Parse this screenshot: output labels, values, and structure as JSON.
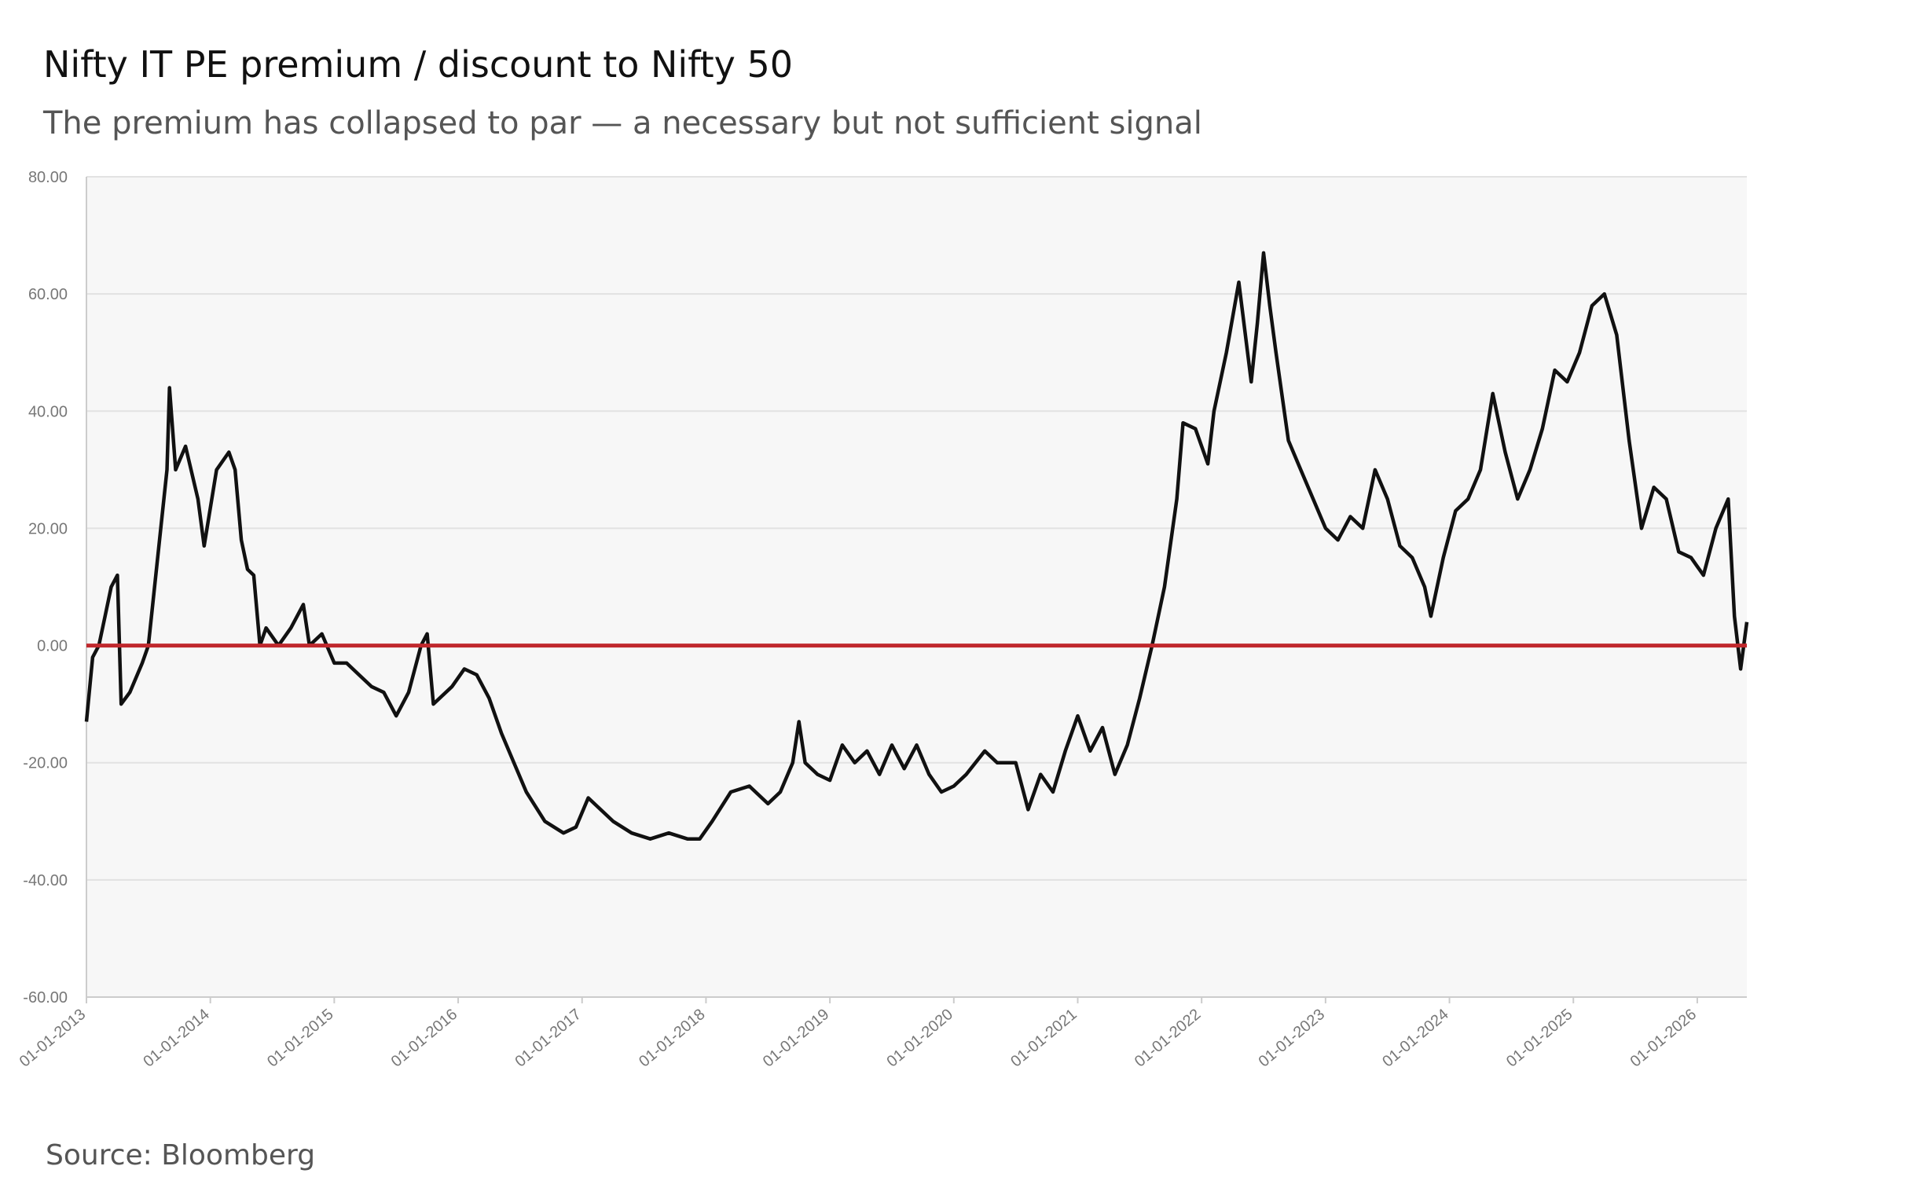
{
  "chart_data": {
    "type": "line",
    "title": "Nifty IT PE premium / discount to Nifty 50",
    "subtitle": "The premium has collapsed to par — a necessary but not sufficient signal",
    "source": "Source: Bloomberg",
    "color": "#111111",
    "reference_line": {
      "value": 0,
      "color": "#c0282d"
    },
    "grid": true,
    "xlim": [
      2013,
      2026.4
    ],
    "ylim": [
      -60,
      80
    ],
    "yticks": [
      {
        "value": -60,
        "label": "-60.00"
      },
      {
        "value": -40,
        "label": "-40.00"
      },
      {
        "value": -20,
        "label": "-20.00"
      },
      {
        "value": 0,
        "label": "0.00"
      },
      {
        "value": 20,
        "label": "20.00"
      },
      {
        "value": 40,
        "label": "40.00"
      },
      {
        "value": 60,
        "label": "60.00"
      },
      {
        "value": 80,
        "label": "80.00"
      }
    ],
    "xticks": [
      {
        "value": 2013,
        "label": "01-01-2013"
      },
      {
        "value": 2014,
        "label": "01-01-2014"
      },
      {
        "value": 2015,
        "label": "01-01-2015"
      },
      {
        "value": 2016,
        "label": "01-01-2016"
      },
      {
        "value": 2017,
        "label": "01-01-2017"
      },
      {
        "value": 2018,
        "label": "01-01-2018"
      },
      {
        "value": 2019,
        "label": "01-01-2019"
      },
      {
        "value": 2020,
        "label": "01-01-2020"
      },
      {
        "value": 2021,
        "label": "01-01-2021"
      },
      {
        "value": 2022,
        "label": "01-01-2022"
      },
      {
        "value": 2023,
        "label": "01-01-2023"
      },
      {
        "value": 2024,
        "label": "01-01-2024"
      },
      {
        "value": 2025,
        "label": "01-01-2025"
      },
      {
        "value": 2026,
        "label": "01-01-2026"
      }
    ],
    "x": [
      2013.0,
      2013.05,
      2013.1,
      2013.15,
      2013.2,
      2013.25,
      2013.28,
      2013.35,
      2013.45,
      2013.5,
      2013.6,
      2013.65,
      2013.67,
      2013.72,
      2013.8,
      2013.9,
      2013.95,
      2014.05,
      2014.15,
      2014.2,
      2014.25,
      2014.3,
      2014.35,
      2014.4,
      2014.45,
      2014.55,
      2014.65,
      2014.75,
      2014.8,
      2014.9,
      2015.0,
      2015.1,
      2015.2,
      2015.3,
      2015.4,
      2015.5,
      2015.6,
      2015.7,
      2015.75,
      2015.8,
      2015.95,
      2016.05,
      2016.15,
      2016.25,
      2016.35,
      2016.45,
      2016.55,
      2016.7,
      2016.85,
      2016.95,
      2017.05,
      2017.15,
      2017.25,
      2017.4,
      2017.55,
      2017.7,
      2017.85,
      2017.95,
      2018.05,
      2018.2,
      2018.35,
      2018.5,
      2018.6,
      2018.7,
      2018.75,
      2018.8,
      2018.9,
      2019.0,
      2019.1,
      2019.2,
      2019.3,
      2019.4,
      2019.5,
      2019.6,
      2019.7,
      2019.8,
      2019.9,
      2020.0,
      2020.1,
      2020.25,
      2020.35,
      2020.5,
      2020.6,
      2020.7,
      2020.8,
      2020.9,
      2021.0,
      2021.1,
      2021.2,
      2021.3,
      2021.4,
      2021.5,
      2021.6,
      2021.7,
      2021.8,
      2021.85,
      2021.95,
      2022.05,
      2022.1,
      2022.2,
      2022.3,
      2022.4,
      2022.45,
      2022.5,
      2022.55,
      2022.6,
      2022.7,
      2022.8,
      2022.9,
      2023.0,
      2023.1,
      2023.2,
      2023.3,
      2023.4,
      2023.5,
      2023.6,
      2023.7,
      2023.8,
      2023.85,
      2023.95,
      2024.05,
      2024.15,
      2024.25,
      2024.35,
      2024.45,
      2024.55,
      2024.65,
      2024.75,
      2024.85,
      2024.95,
      2025.05,
      2025.15,
      2025.25,
      2025.35,
      2025.45,
      2025.55,
      2025.65,
      2025.75,
      2025.85,
      2025.95,
      2026.05,
      2026.15,
      2026.25,
      2026.3,
      2026.35,
      2026.4
    ],
    "values": [
      -13,
      -2,
      0,
      5,
      10,
      12,
      -10,
      -8,
      -3,
      0,
      20,
      30,
      44,
      30,
      34,
      25,
      17,
      30,
      33,
      30,
      18,
      13,
      12,
      0,
      3,
      0,
      3,
      7,
      0,
      2,
      -3,
      -3,
      -5,
      -7,
      -8,
      -12,
      -8,
      0,
      2,
      -10,
      -7,
      -4,
      -5,
      -9,
      -15,
      -20,
      -25,
      -30,
      -32,
      -31,
      -26,
      -28,
      -30,
      -32,
      -33,
      -32,
      -33,
      -33,
      -30,
      -25,
      -24,
      -27,
      -25,
      -20,
      -13,
      -20,
      -22,
      -23,
      -17,
      -20,
      -18,
      -22,
      -17,
      -21,
      -17,
      -22,
      -25,
      -24,
      -22,
      -18,
      -20,
      -20,
      -28,
      -22,
      -25,
      -18,
      -12,
      -18,
      -14,
      -22,
      -17,
      -9,
      0,
      10,
      25,
      38,
      37,
      31,
      40,
      50,
      62,
      45,
      55,
      67,
      58,
      50,
      35,
      30,
      25,
      20,
      18,
      22,
      20,
      30,
      25,
      17,
      15,
      10,
      5,
      15,
      23,
      25,
      30,
      43,
      33,
      25,
      30,
      37,
      47,
      45,
      50,
      58,
      60,
      53,
      35,
      20,
      27,
      25,
      16,
      15,
      12,
      20,
      25,
      5,
      -4,
      4
    ]
  }
}
